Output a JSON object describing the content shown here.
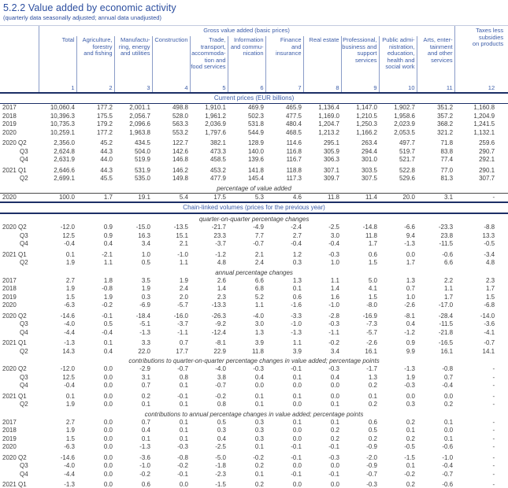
{
  "page": {
    "title": "5.2.2 Value added by economic activity",
    "subtitle": "(quarterly data seasonally adjusted; annual data unadjusted)"
  },
  "colors": {
    "heading_blue": "#2c4e9f",
    "header_text_blue": "#3b5ca8",
    "rule_navy": "#1c2f66",
    "data_text": "#3d3d3d"
  },
  "table": {
    "group_header": "Gross value added (basic prices)",
    "taxes_header": "Taxes less\nsubsidies\non products",
    "columns": [
      "Total",
      "Agriculture,\nforestry\nand fishing",
      "Manufactu-\nring, energy\nand utilities",
      "Construction",
      "Trade,\ntransport,\naccommoda-\ntion and\nfood services",
      "Information\nand commu-\nnication",
      "Finance\nand\ninsurance",
      "Real estate",
      "Professional,\nbusiness and\nsupport\nservices",
      "Public admi-\nnistration,\neducation,\nhealth and\nsocial work",
      "Arts, enter-\ntainment\nand other\nservices"
    ],
    "column_numbers": [
      "1",
      "2",
      "3",
      "4",
      "5",
      "6",
      "7",
      "8",
      "9",
      "10",
      "11",
      "12"
    ],
    "blocks": [
      {
        "kind": "band1",
        "label": "Current prices (EUR billions)"
      },
      {
        "kind": "r",
        "label": "2017",
        "values": [
          "10,060.4",
          "177.2",
          "2,001.1",
          "498.8",
          "1,910.1",
          "469.9",
          "465.9",
          "1,136.4",
          "1,147.0",
          "1,902.7",
          "351.2",
          "1,160.8"
        ]
      },
      {
        "kind": "r",
        "label": "2018",
        "values": [
          "10,396.3",
          "175.5",
          "2,056.7",
          "528.0",
          "1,961.2",
          "502.3",
          "477.5",
          "1,169.0",
          "1,210.5",
          "1,958.6",
          "357.2",
          "1,204.9"
        ]
      },
      {
        "kind": "r",
        "label": "2019",
        "values": [
          "10,735.3",
          "179.2",
          "2,096.6",
          "563.3",
          "2,036.9",
          "531.8",
          "480.4",
          "1,204.7",
          "1,250.3",
          "2,023.9",
          "368.2",
          "1,241.5"
        ]
      },
      {
        "kind": "r",
        "label": "2020",
        "values": [
          "10,259.1",
          "177.2",
          "1,963.8",
          "553.2",
          "1,797.6",
          "544.9",
          "468.5",
          "1,213.2",
          "1,166.2",
          "2,053.5",
          "321.2",
          "1,132.1"
        ]
      },
      {
        "kind": "gap"
      },
      {
        "kind": "r",
        "label": "2020 Q2",
        "values": [
          "2,356.0",
          "45.2",
          "434.5",
          "122.7",
          "382.1",
          "128.9",
          "114.6",
          "295.1",
          "263.4",
          "497.7",
          "71.8",
          "259.6"
        ]
      },
      {
        "kind": "r",
        "label": "Q3",
        "values": [
          "2,624.8",
          "44.3",
          "504.0",
          "142.6",
          "473.3",
          "140.0",
          "116.8",
          "305.9",
          "294.4",
          "519.7",
          "83.8",
          "290.7"
        ]
      },
      {
        "kind": "r",
        "label": "Q4",
        "values": [
          "2,631.9",
          "44.0",
          "519.9",
          "146.8",
          "458.5",
          "139.6",
          "116.7",
          "306.3",
          "301.0",
          "521.7",
          "77.4",
          "292.1"
        ]
      },
      {
        "kind": "gap"
      },
      {
        "kind": "r",
        "label": "2021 Q1",
        "values": [
          "2,646.6",
          "44.3",
          "531.9",
          "146.2",
          "453.2",
          "141.8",
          "118.8",
          "307.1",
          "303.5",
          "522.8",
          "77.0",
          "290.1"
        ]
      },
      {
        "kind": "r",
        "label": "Q2",
        "values": [
          "2,699.1",
          "45.5",
          "535.0",
          "149.8",
          "477.9",
          "145.4",
          "117.3",
          "309.7",
          "307.5",
          "529.6",
          "81.3",
          "307.7"
        ]
      },
      {
        "kind": "subr",
        "label": "percentage of value added"
      },
      {
        "kind": "r",
        "label": "2020",
        "values": [
          "100.0",
          "1.7",
          "19.1",
          "5.4",
          "17.5",
          "5.3",
          "4.6",
          "11.8",
          "11.4",
          "20.0",
          "3.1",
          "-"
        ]
      },
      {
        "kind": "band2",
        "label": "Chain-linked volumes (prices for the previous year)"
      },
      {
        "kind": "sub",
        "label": "quarter-on-quarter percentage changes"
      },
      {
        "kind": "r",
        "label": "2020 Q2",
        "values": [
          "-12.0",
          "0.9",
          "-15.0",
          "-13.5",
          "-21.7",
          "-4.9",
          "-2.4",
          "-2.5",
          "-14.8",
          "-6.6",
          "-23.3",
          "-8.8"
        ]
      },
      {
        "kind": "r",
        "label": "Q3",
        "values": [
          "12.5",
          "0.9",
          "16.3",
          "15.1",
          "23.3",
          "7.7",
          "2.7",
          "3.0",
          "11.8",
          "9.4",
          "23.8",
          "13.3"
        ]
      },
      {
        "kind": "r",
        "label": "Q4",
        "values": [
          "-0.4",
          "0.4",
          "3.4",
          "2.1",
          "-3.7",
          "-0.7",
          "-0.4",
          "-0.4",
          "1.7",
          "-1.3",
          "-11.5",
          "-0.5"
        ]
      },
      {
        "kind": "gap"
      },
      {
        "kind": "r",
        "label": "2021 Q1",
        "values": [
          "0.1",
          "-2.1",
          "1.0",
          "-1.0",
          "-1.2",
          "2.1",
          "1.2",
          "-0.3",
          "0.6",
          "0.0",
          "-0.6",
          "-3.4"
        ]
      },
      {
        "kind": "r",
        "label": "Q2",
        "values": [
          "1.9",
          "1.1",
          "0.5",
          "1.1",
          "4.8",
          "2.4",
          "0.3",
          "1.0",
          "1.5",
          "1.7",
          "6.6",
          "4.8"
        ]
      },
      {
        "kind": "sub",
        "label": "annual percentage changes"
      },
      {
        "kind": "r",
        "label": "2017",
        "values": [
          "2.7",
          "1.8",
          "3.5",
          "1.9",
          "2.6",
          "6.6",
          "1.3",
          "1.1",
          "5.0",
          "1.3",
          "2.2",
          "2.3"
        ]
      },
      {
        "kind": "r",
        "label": "2018",
        "values": [
          "1.9",
          "-0.8",
          "1.9",
          "2.4",
          "1.4",
          "6.8",
          "0.1",
          "1.4",
          "4.1",
          "0.7",
          "1.1",
          "1.7"
        ]
      },
      {
        "kind": "r",
        "label": "2019",
        "values": [
          "1.5",
          "1.9",
          "0.3",
          "2.0",
          "2.3",
          "5.2",
          "0.6",
          "1.6",
          "1.5",
          "1.0",
          "1.7",
          "1.5"
        ]
      },
      {
        "kind": "r",
        "label": "2020",
        "values": [
          "-6.3",
          "-0.2",
          "-6.9",
          "-5.7",
          "-13.3",
          "1.1",
          "-1.6",
          "-1.0",
          "-8.0",
          "-2.6",
          "-17.0",
          "-6.8"
        ]
      },
      {
        "kind": "gap"
      },
      {
        "kind": "r",
        "label": "2020 Q2",
        "values": [
          "-14.6",
          "-0.1",
          "-18.4",
          "-16.0",
          "-26.3",
          "-4.0",
          "-3.3",
          "-2.8",
          "-16.9",
          "-8.1",
          "-28.4",
          "-14.0"
        ]
      },
      {
        "kind": "r",
        "label": "Q3",
        "values": [
          "-4.0",
          "0.5",
          "-5.1",
          "-3.7",
          "-9.2",
          "3.0",
          "-1.0",
          "-0.3",
          "-7.3",
          "0.4",
          "-11.5",
          "-3.6"
        ]
      },
      {
        "kind": "r",
        "label": "Q4",
        "values": [
          "-4.4",
          "-0.4",
          "-1.3",
          "-1.1",
          "-12.4",
          "1.3",
          "-1.3",
          "-1.1",
          "-5.7",
          "-1.2",
          "-21.8",
          "-4.1"
        ]
      },
      {
        "kind": "gap"
      },
      {
        "kind": "r",
        "label": "2021 Q1",
        "values": [
          "-1.3",
          "0.1",
          "3.3",
          "0.7",
          "-8.1",
          "3.9",
          "1.1",
          "-0.2",
          "-2.6",
          "0.9",
          "-16.5",
          "-0.7"
        ]
      },
      {
        "kind": "r",
        "label": "Q2",
        "values": [
          "14.3",
          "0.4",
          "22.0",
          "17.7",
          "22.9",
          "11.8",
          "3.9",
          "3.4",
          "16.1",
          "9.9",
          "16.1",
          "14.1"
        ]
      },
      {
        "kind": "sub",
        "label": "contributions to quarter-on-quarter percentage changes in value added; percentage points"
      },
      {
        "kind": "r",
        "label": "2020 Q2",
        "values": [
          "-12.0",
          "0.0",
          "-2.9",
          "-0.7",
          "-4.0",
          "-0.3",
          "-0.1",
          "-0.3",
          "-1.7",
          "-1.3",
          "-0.8",
          "-"
        ]
      },
      {
        "kind": "r",
        "label": "Q3",
        "values": [
          "12.5",
          "0.0",
          "3.1",
          "0.8",
          "3.8",
          "0.4",
          "0.1",
          "0.4",
          "1.3",
          "1.9",
          "0.7",
          "-"
        ]
      },
      {
        "kind": "r",
        "label": "Q4",
        "values": [
          "-0.4",
          "0.0",
          "0.7",
          "0.1",
          "-0.7",
          "0.0",
          "0.0",
          "0.0",
          "0.2",
          "-0.3",
          "-0.4",
          "-"
        ]
      },
      {
        "kind": "gap"
      },
      {
        "kind": "r",
        "label": "2021 Q1",
        "values": [
          "0.1",
          "0.0",
          "0.2",
          "-0.1",
          "-0.2",
          "0.1",
          "0.1",
          "0.0",
          "0.1",
          "0.0",
          "0.0",
          "-"
        ]
      },
      {
        "kind": "r",
        "label": "Q2",
        "values": [
          "1.9",
          "0.0",
          "0.1",
          "0.1",
          "0.8",
          "0.1",
          "0.0",
          "0.1",
          "0.2",
          "0.3",
          "0.2",
          "-"
        ]
      },
      {
        "kind": "sub",
        "label": "contributions to annual percentage changes in value added; percentage points"
      },
      {
        "kind": "r",
        "label": "2017",
        "values": [
          "2.7",
          "0.0",
          "0.7",
          "0.1",
          "0.5",
          "0.3",
          "0.1",
          "0.1",
          "0.6",
          "0.2",
          "0.1",
          "-"
        ]
      },
      {
        "kind": "r",
        "label": "2018",
        "values": [
          "1.9",
          "0.0",
          "0.4",
          "0.1",
          "0.3",
          "0.3",
          "0.0",
          "0.2",
          "0.5",
          "0.1",
          "0.0",
          "-"
        ]
      },
      {
        "kind": "r",
        "label": "2019",
        "values": [
          "1.5",
          "0.0",
          "0.1",
          "0.1",
          "0.4",
          "0.3",
          "0.0",
          "0.2",
          "0.2",
          "0.2",
          "0.1",
          "-"
        ]
      },
      {
        "kind": "r",
        "label": "2020",
        "values": [
          "-6.3",
          "0.0",
          "-1.3",
          "-0.3",
          "-2.5",
          "0.1",
          "-0.1",
          "-0.1",
          "-0.9",
          "-0.5",
          "-0.6",
          "-"
        ]
      },
      {
        "kind": "gap"
      },
      {
        "kind": "r",
        "label": "2020 Q2",
        "values": [
          "-14.6",
          "0.0",
          "-3.6",
          "-0.8",
          "-5.0",
          "-0.2",
          "-0.1",
          "-0.3",
          "-2.0",
          "-1.5",
          "-1.0",
          "-"
        ]
      },
      {
        "kind": "r",
        "label": "Q3",
        "values": [
          "-4.0",
          "0.0",
          "-1.0",
          "-0.2",
          "-1.8",
          "0.2",
          "0.0",
          "0.0",
          "-0.9",
          "0.1",
          "-0.4",
          "-"
        ]
      },
      {
        "kind": "r",
        "label": "Q4",
        "values": [
          "-4.4",
          "0.0",
          "-0.2",
          "-0.1",
          "-2.3",
          "0.1",
          "-0.1",
          "-0.1",
          "-0.7",
          "-0.2",
          "-0.7",
          "-"
        ]
      },
      {
        "kind": "gap"
      },
      {
        "kind": "r",
        "label": "2021 Q1",
        "values": [
          "-1.3",
          "0.0",
          "0.6",
          "0.0",
          "-1.5",
          "0.2",
          "0.0",
          "0.0",
          "-0.3",
          "0.2",
          "-0.6",
          "-"
        ]
      },
      {
        "kind": "r",
        "label": "Q2",
        "values": [
          "14.3",
          "0.0",
          "4.1",
          "0.9",
          "3.7",
          "0.7",
          "0.2",
          "0.4",
          "1.8",
          "2.0",
          "0.5",
          "-"
        ]
      }
    ]
  }
}
